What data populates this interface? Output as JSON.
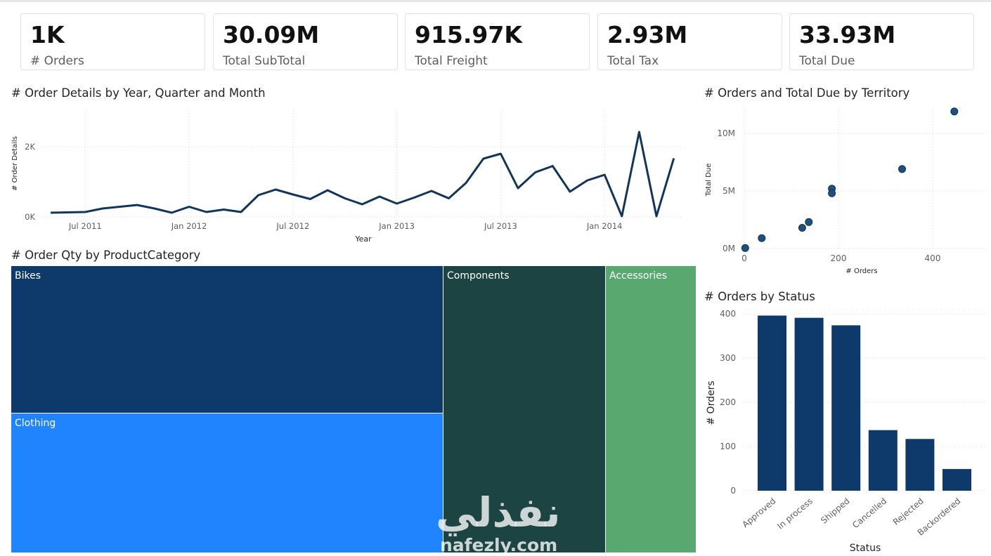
{
  "kpis": [
    {
      "value": "1K",
      "label": "# Orders"
    },
    {
      "value": "30.09M",
      "label": "Total SubTotal"
    },
    {
      "value": "915.97K",
      "label": "Total Freight"
    },
    {
      "value": "2.93M",
      "label": "Total Tax"
    },
    {
      "value": "33.93M",
      "label": "Total Due"
    }
  ],
  "colors": {
    "dark_blue": "#0e3a6b",
    "bright_blue": "#1f84fd",
    "dark_green": "#1c4442",
    "light_green": "#59a86f",
    "line": "#12355b"
  },
  "line_chart": {
    "title": "# Order Details by Year, Quarter and Month",
    "chart_data": {
      "type": "line",
      "title": "# Order Details by Year, Quarter and Month",
      "xlabel": "Year",
      "ylabel": "# Order Details",
      "x_ticks": [
        "Jul 2011",
        "Jan 2012",
        "Jul 2012",
        "Jan 2013",
        "Jul 2013",
        "Jan 2014"
      ],
      "y_ticks": [
        "0K",
        "2K"
      ],
      "ylim": [
        0,
        2800
      ],
      "x": [
        "May 2011",
        "Jun 2011",
        "Jul 2011",
        "Aug 2011",
        "Sep 2011",
        "Oct 2011",
        "Nov 2011",
        "Dec 2011",
        "Jan 2012",
        "Feb 2012",
        "Mar 2012",
        "Apr 2012",
        "May 2012",
        "Jun 2012",
        "Jul 2012",
        "Aug 2012",
        "Sep 2012",
        "Oct 2012",
        "Nov 2012",
        "Dec 2012",
        "Jan 2013",
        "Feb 2013",
        "Mar 2013",
        "Apr 2013",
        "May 2013",
        "Jun 2013",
        "Jul 2013",
        "Aug 2013",
        "Sep 2013",
        "Oct 2013",
        "Nov 2013",
        "Dec 2013",
        "Jan 2014",
        "Feb 2014",
        "Mar 2014",
        "Apr 2014",
        "May 2014"
      ],
      "values": [
        120,
        130,
        140,
        240,
        290,
        340,
        240,
        120,
        290,
        140,
        210,
        140,
        620,
        780,
        640,
        510,
        760,
        530,
        360,
        580,
        380,
        550,
        740,
        530,
        970,
        1660,
        1800,
        820,
        1270,
        1450,
        720,
        1040,
        1200,
        20,
        2420,
        20,
        1670
      ]
    }
  },
  "scatter_chart": {
    "title": "# Orders and Total Due by Territory",
    "chart_data": {
      "type": "scatter",
      "title": "# Orders and Total Due by Territory",
      "xlabel": "# Orders",
      "ylabel": "Total Due",
      "x_ticks": [
        "0",
        "200",
        "400"
      ],
      "y_ticks": [
        "0M",
        "5M",
        "10M"
      ],
      "xlim": [
        0,
        500
      ],
      "ylim": [
        0,
        12500000
      ],
      "points": [
        {
          "x": 2,
          "y": 40000
        },
        {
          "x": 37,
          "y": 900000
        },
        {
          "x": 123,
          "y": 1800000
        },
        {
          "x": 137,
          "y": 2300000
        },
        {
          "x": 186,
          "y": 5200000
        },
        {
          "x": 186,
          "y": 4800000
        },
        {
          "x": 335,
          "y": 6900000
        },
        {
          "x": 446,
          "y": 11900000
        }
      ]
    }
  },
  "treemap": {
    "title": "# Order Qty by ProductCategory",
    "chart_data": {
      "type": "treemap",
      "title": "# Order Qty by ProductCategory",
      "items": [
        {
          "name": "Bikes",
          "share": 0.399,
          "color": "#0e3a6b"
        },
        {
          "name": "Clothing",
          "share": 0.231,
          "color": "#1f84fd"
        },
        {
          "name": "Components",
          "share": 0.237,
          "color": "#1c4442"
        },
        {
          "name": "Accessories",
          "share": 0.133,
          "color": "#59a86f"
        }
      ]
    }
  },
  "bar_chart": {
    "title": "# Orders by Status",
    "chart_data": {
      "type": "bar",
      "title": "# Orders by Status",
      "xlabel": "Status",
      "ylabel": "# Orders",
      "categories": [
        "Approved",
        "In process",
        "Shipped",
        "Cancelled",
        "Rejected",
        "Backordered"
      ],
      "values": [
        396,
        391,
        374,
        137,
        117,
        49
      ],
      "y_ticks": [
        "0",
        "100",
        "200",
        "300",
        "400"
      ],
      "ylim": [
        0,
        400
      ]
    }
  },
  "watermark": {
    "arabic": "نفذلي",
    "latin": "nafezly.com"
  }
}
